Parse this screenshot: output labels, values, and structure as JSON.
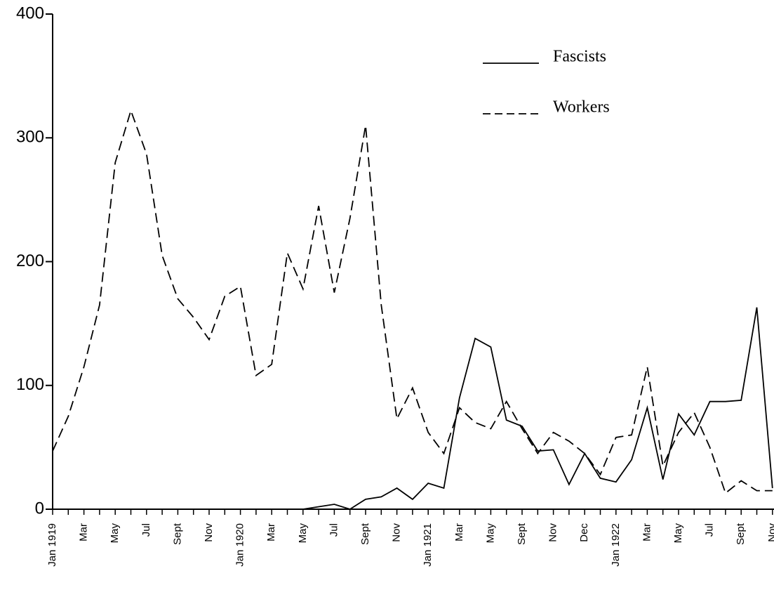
{
  "chart_data": {
    "type": "line",
    "categories": [
      "Jan 1919",
      null,
      "Mar",
      null,
      "May",
      null,
      "Jul",
      null,
      "Sept",
      null,
      "Nov",
      null,
      "Jan 1920",
      null,
      "Mar",
      null,
      "May",
      null,
      "Jul",
      null,
      "Sept",
      null,
      "Nov",
      null,
      "Jan 1921",
      null,
      "Mar",
      null,
      "May",
      null,
      "Sept",
      null,
      "Nov",
      null,
      "Dec",
      null,
      "Jan 1922",
      null,
      "Mar",
      null,
      "May",
      null,
      "Jul",
      null,
      "Sept",
      null,
      "Nov"
    ],
    "series": [
      {
        "name": "Fascists",
        "color": "#000000",
        "dash": "solid",
        "values": [
          0,
          0,
          0,
          0,
          0,
          0,
          0,
          0,
          0,
          0,
          0,
          0,
          0,
          0,
          0,
          0,
          0,
          2,
          4,
          0,
          8,
          10,
          17,
          8,
          21,
          17,
          90,
          138,
          131,
          72,
          67,
          47,
          48,
          20,
          45,
          25,
          22,
          40,
          82,
          24,
          77,
          60,
          87,
          87,
          88,
          163,
          17
        ]
      },
      {
        "name": "Workers",
        "color": "#000000",
        "dash": "dashed",
        "values": [
          47,
          75,
          115,
          165,
          280,
          322,
          287,
          205,
          170,
          155,
          137,
          172,
          180,
          108,
          117,
          207,
          178,
          245,
          175,
          235,
          310,
          165,
          73,
          98,
          62,
          45,
          82,
          70,
          65,
          87,
          65,
          45,
          62,
          55,
          45,
          28,
          58,
          60,
          115,
          35,
          62,
          78,
          50,
          13,
          23,
          15,
          15
        ]
      }
    ],
    "ylim": [
      0,
      400
    ],
    "yticks": [
      0,
      100,
      200,
      300,
      400
    ],
    "legend": "upper right"
  }
}
